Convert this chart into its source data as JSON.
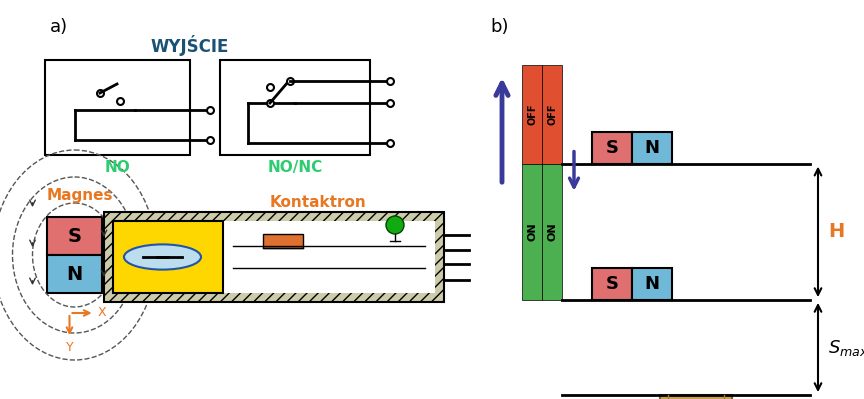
{
  "title_a": "a)",
  "title_b": "b)",
  "wyjscie_label": "WYJŚCIE",
  "no_label": "NO",
  "nonc_label": "NO/NC",
  "magnes_label": "Magnes",
  "kontaktron_label": "Kontaktron",
  "label_color_orange": "#E87722",
  "label_color_green": "#2ECC71",
  "wyjscie_color": "#1a5276",
  "magnet_S_color": "#E07070",
  "magnet_N_color": "#70B8D8",
  "kontaktron_yellow": "#FFD700",
  "kontaktron_orange": "#E07030",
  "off_color": "#E05030",
  "on_color": "#4CAF50",
  "arrow_color": "#3A3A9A",
  "H_color": "#E87722",
  "hatch_color": "#888888",
  "bg_color": "#ffffff"
}
